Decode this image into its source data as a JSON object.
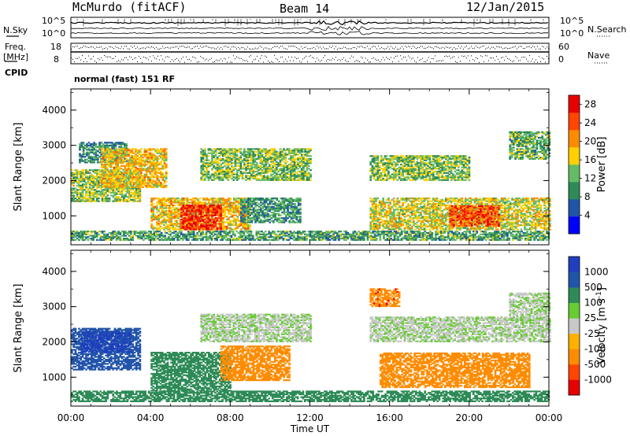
{
  "header": {
    "station": "McMurdo (fitACF)",
    "beam": "Beam 14",
    "date": "12/Jan/2015"
  },
  "status_panels": {
    "nsky_label": "N.Sky",
    "nsearch_label": "N.Search",
    "freq_label_1": "Freq.",
    "freq_label_2": "[MHz]",
    "nave_label": "Nave",
    "cpid_label": "CPID",
    "cpid_value": "normal (fast) 151 RF",
    "noise_ticks_left": [
      "10^5",
      "10^0"
    ],
    "noise_ticks_right": [
      "10^5",
      "10^0"
    ],
    "freq_ticks": [
      "18",
      "8"
    ],
    "nave_ticks": [
      "60",
      "0"
    ]
  },
  "colors": {
    "power_scale": [
      "#0000ff",
      "#2255aa",
      "#2e8b57",
      "#66bb66",
      "#ffd000",
      "#ff8c00",
      "#ff4500",
      "#e60000"
    ],
    "velocity_scale": [
      "#e60000",
      "#ff4500",
      "#ff8c00",
      "#ffb000",
      "#c8c8c8",
      "#66cc33",
      "#2e8b57",
      "#2255aa",
      "#1f3fbf"
    ],
    "ground_scatter": "#bdbdbd"
  },
  "chart_data": [
    {
      "type": "heatmap",
      "title": "",
      "xlabel": "Time UT",
      "ylabel": "Slant Range [km]",
      "xlim": [
        "00:00",
        "24:00"
      ],
      "ylim": [
        180,
        4600
      ],
      "x_ticks": [
        "00:00",
        "04:00",
        "08:00",
        "12:00",
        "16:00",
        "20:00",
        "00:00"
      ],
      "y_ticks": [
        "1000",
        "2000",
        "3000",
        "4000"
      ],
      "colorbar": {
        "label": "Power [dB]",
        "ticks": [
          "4",
          "8",
          "12",
          "16",
          "20",
          "24",
          "28"
        ],
        "range": [
          0,
          30
        ]
      },
      "echo_regions": [
        {
          "t_start": 0.0,
          "t_end": 3.5,
          "r_start": 1400,
          "r_end": 2300,
          "value": 14
        },
        {
          "t_start": 0.4,
          "t_end": 2.8,
          "r_start": 2500,
          "r_end": 3100,
          "value": 9
        },
        {
          "t_start": 1.5,
          "t_end": 4.8,
          "r_start": 1800,
          "r_end": 2900,
          "value": 18
        },
        {
          "t_start": 4.0,
          "t_end": 9.0,
          "r_start": 600,
          "r_end": 1500,
          "value": 18
        },
        {
          "t_start": 5.5,
          "t_end": 7.5,
          "r_start": 600,
          "r_end": 1300,
          "value": 27
        },
        {
          "t_start": 6.5,
          "t_end": 12.0,
          "r_start": 2000,
          "r_end": 2900,
          "value": 13
        },
        {
          "t_start": 8.5,
          "t_end": 11.5,
          "r_start": 800,
          "r_end": 1500,
          "value": 10
        },
        {
          "t_start": 15.0,
          "t_end": 20.0,
          "r_start": 2000,
          "r_end": 2700,
          "value": 13
        },
        {
          "t_start": 15.0,
          "t_end": 24.0,
          "r_start": 600,
          "r_end": 1500,
          "value": 16
        },
        {
          "t_start": 19.0,
          "t_end": 21.5,
          "r_start": 700,
          "r_end": 1300,
          "value": 24
        },
        {
          "t_start": 22.0,
          "t_end": 24.0,
          "r_start": 2600,
          "r_end": 3400,
          "value": 12
        },
        {
          "t_start": 0.0,
          "t_end": 24.0,
          "r_start": 300,
          "r_end": 550,
          "value": 11
        }
      ]
    },
    {
      "type": "heatmap",
      "title": "",
      "xlabel": "Time UT",
      "ylabel": "Slant Range [km]",
      "xlim": [
        "00:00",
        "24:00"
      ],
      "ylim": [
        180,
        4600
      ],
      "x_ticks": [
        "00:00",
        "04:00",
        "08:00",
        "12:00",
        "16:00",
        "20:00",
        "00:00"
      ],
      "y_ticks": [
        "1000",
        "2000",
        "3000",
        "4000"
      ],
      "colorbar": {
        "label": "Velocity [m s^-1]",
        "ticks": [
          "1000",
          "500",
          "100",
          "25",
          "-25",
          "-100",
          "-500",
          "-1000"
        ],
        "range": [
          -1000,
          1000
        ]
      },
      "echo_regions": [
        {
          "t_start": 0.0,
          "t_end": 3.5,
          "r_start": 1200,
          "r_end": 2400,
          "value": 150
        },
        {
          "t_start": 0.5,
          "t_end": 3.0,
          "r_start": 1700,
          "r_end": 2300,
          "value": 600
        },
        {
          "t_start": 4.0,
          "t_end": 8.0,
          "r_start": 600,
          "r_end": 1700,
          "value": 60
        },
        {
          "t_start": 6.5,
          "t_end": 12.0,
          "r_start": 2000,
          "r_end": 2800,
          "value": 0
        },
        {
          "t_start": 7.5,
          "t_end": 11.0,
          "r_start": 900,
          "r_end": 1900,
          "value": -150
        },
        {
          "t_start": 15.0,
          "t_end": 16.5,
          "r_start": 3000,
          "r_end": 3500,
          "value": -400
        },
        {
          "t_start": 15.0,
          "t_end": 24.0,
          "r_start": 2000,
          "r_end": 2700,
          "value": 0
        },
        {
          "t_start": 15.5,
          "t_end": 23.0,
          "r_start": 700,
          "r_end": 1700,
          "value": -300
        },
        {
          "t_start": 22.0,
          "t_end": 24.0,
          "r_start": 2600,
          "r_end": 3400,
          "value": 0
        },
        {
          "t_start": 0.0,
          "t_end": 24.0,
          "r_start": 300,
          "r_end": 600,
          "value": 60
        }
      ]
    }
  ]
}
